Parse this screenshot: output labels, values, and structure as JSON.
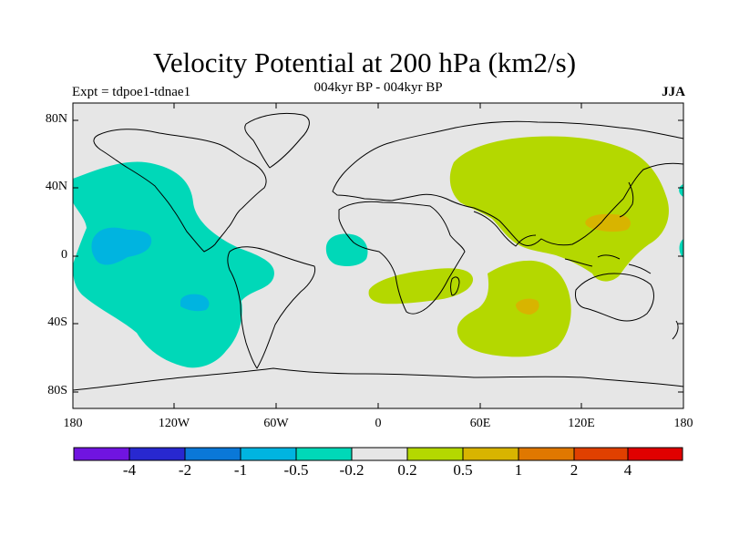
{
  "title": "Velocity Potential at 200 hPa (km2/s)",
  "subtitle": "004kyr BP - 004kyr BP",
  "experiment": "Expt = tdpoe1-tdnae1",
  "season": "JJA",
  "map": {
    "projection": "cylindrical-equidistant",
    "lon_range": [
      -180,
      180
    ],
    "lat_range": [
      -90,
      90
    ],
    "background_color": "#e6e6e6",
    "y_ticks": [
      "80N",
      "40N",
      "0",
      "40S",
      "80S"
    ],
    "x_ticks": [
      "180",
      "120W",
      "60W",
      "0",
      "60E",
      "120E",
      "180"
    ]
  },
  "colorbar": {
    "colors": [
      "#7014e0",
      "#2828d0",
      "#0a78d8",
      "#00b4e0",
      "#00d8b8",
      "#e6e6e6",
      "#b4d800",
      "#d8b400",
      "#e07800",
      "#e04000",
      "#e00000"
    ],
    "labels": [
      "-4",
      "-2",
      "-1",
      "-0.5",
      "-0.2",
      "0.2",
      "0.5",
      "1",
      "2",
      "4"
    ]
  },
  "regions": [
    {
      "name": "pacific-negative-region",
      "level": "-0.5 to -0.2",
      "color": "#00d8b8"
    },
    {
      "name": "central-pacific-minimum",
      "level": "-1 to -0.5",
      "color": "#00b4e0"
    },
    {
      "name": "southeast-pacific-minimum",
      "level": "-1 to -0.5",
      "color": "#00b4e0"
    },
    {
      "name": "tropical-atlantic-negative",
      "level": "-0.5 to -0.2",
      "color": "#00d8b8"
    },
    {
      "name": "asia-positive-region",
      "level": "0.2 to 0.5",
      "color": "#b4d800"
    },
    {
      "name": "west-pacific-maximum",
      "level": "0.5 to 1",
      "color": "#d8b400"
    },
    {
      "name": "south-africa-positive",
      "level": "0.2 to 0.5",
      "color": "#b4d800"
    },
    {
      "name": "indian-ocean-positive",
      "level": "0.2 to 0.5",
      "color": "#b4d800"
    },
    {
      "name": "indian-ocean-maximum",
      "level": "0.5 to 1",
      "color": "#d8b400"
    }
  ]
}
